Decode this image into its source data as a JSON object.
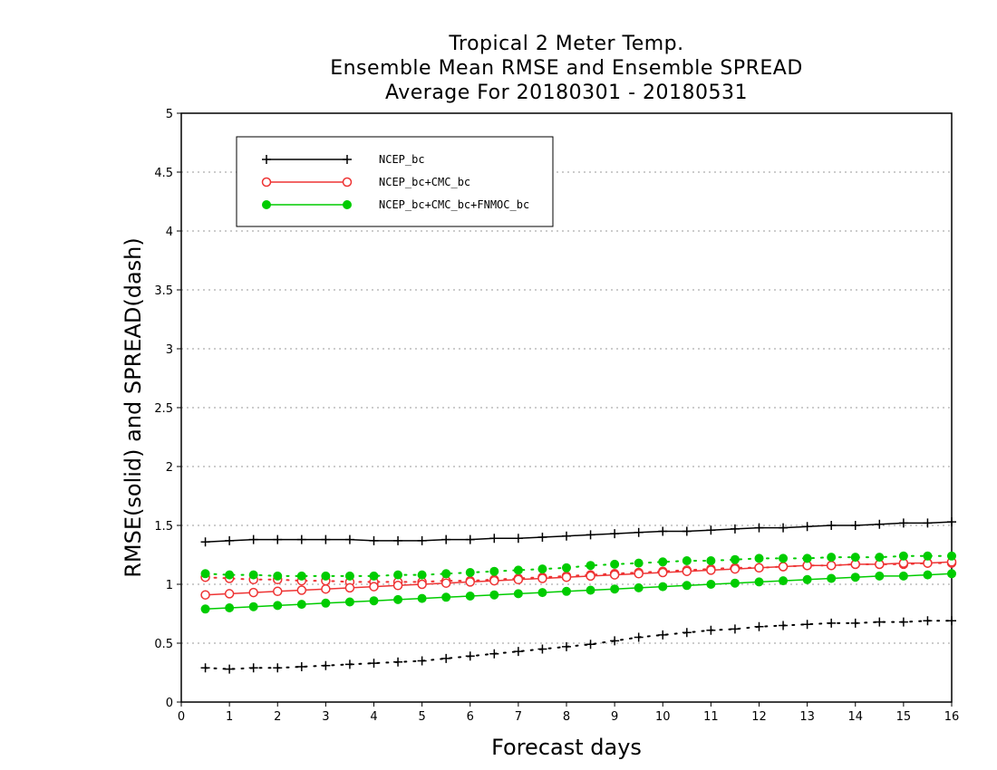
{
  "chart_data": {
    "type": "line",
    "title_lines": [
      "Tropical 2 Meter Temp.",
      "Ensemble Mean RMSE and Ensemble SPREAD",
      "Average For 20180301 - 20180531"
    ],
    "xlabel": "Forecast days",
    "ylabel": "RMSE(solid) and SPREAD(dash)",
    "xlim": [
      0,
      16
    ],
    "ylim": [
      0,
      5
    ],
    "x_ticks": [
      0,
      1,
      2,
      3,
      4,
      5,
      6,
      7,
      8,
      9,
      10,
      11,
      12,
      13,
      14,
      15,
      16
    ],
    "y_ticks": [
      0,
      0.5,
      1,
      1.5,
      2,
      2.5,
      3,
      3.5,
      4,
      4.5,
      5
    ],
    "x_tick_labels": [
      "0",
      "1",
      "2",
      "3",
      "4",
      "5",
      "6",
      "7",
      "8",
      "9",
      "10",
      "11",
      "12",
      "13",
      "14",
      "15",
      "16"
    ],
    "y_tick_labels": [
      "0",
      "0.5",
      "1",
      "1.5",
      "2",
      "2.5",
      "3",
      "3.5",
      "4",
      "4.5",
      "5"
    ],
    "grid": true,
    "legend_position": "top-left",
    "x": [
      0.5,
      1,
      1.5,
      2,
      2.5,
      3,
      3.5,
      4,
      4.5,
      5,
      5.5,
      6,
      6.5,
      7,
      7.5,
      8,
      8.5,
      9,
      9.5,
      10,
      10.5,
      11,
      11.5,
      12,
      12.5,
      13,
      13.5,
      14,
      14.5,
      15,
      15.5,
      16
    ],
    "series": [
      {
        "name": "NCEP_bc",
        "color": "#000000",
        "marker": "plus",
        "rmse": [
          1.36,
          1.37,
          1.38,
          1.38,
          1.38,
          1.38,
          1.38,
          1.37,
          1.37,
          1.37,
          1.38,
          1.38,
          1.39,
          1.39,
          1.4,
          1.41,
          1.42,
          1.43,
          1.44,
          1.45,
          1.45,
          1.46,
          1.47,
          1.48,
          1.48,
          1.49,
          1.5,
          1.5,
          1.51,
          1.52,
          1.52,
          1.53
        ],
        "spread": [
          0.29,
          0.28,
          0.29,
          0.29,
          0.3,
          0.31,
          0.32,
          0.33,
          0.34,
          0.35,
          0.37,
          0.39,
          0.41,
          0.43,
          0.45,
          0.47,
          0.49,
          0.52,
          0.55,
          0.57,
          0.59,
          0.61,
          0.62,
          0.64,
          0.65,
          0.66,
          0.67,
          0.67,
          0.68,
          0.68,
          0.69,
          0.69
        ]
      },
      {
        "name": "NCEP_bc+CMC_bc",
        "color": "#ee3333",
        "marker": "open-circle",
        "rmse": [
          0.91,
          0.92,
          0.93,
          0.94,
          0.95,
          0.96,
          0.97,
          0.98,
          0.99,
          1.0,
          1.01,
          1.02,
          1.03,
          1.04,
          1.05,
          1.06,
          1.07,
          1.08,
          1.09,
          1.1,
          1.11,
          1.12,
          1.13,
          1.14,
          1.15,
          1.16,
          1.16,
          1.17,
          1.17,
          1.18,
          1.18,
          1.19
        ],
        "spread": [
          1.06,
          1.05,
          1.04,
          1.04,
          1.03,
          1.03,
          1.02,
          1.02,
          1.02,
          1.02,
          1.03,
          1.03,
          1.04,
          1.05,
          1.06,
          1.07,
          1.08,
          1.09,
          1.1,
          1.11,
          1.12,
          1.13,
          1.14,
          1.14,
          1.15,
          1.16,
          1.16,
          1.17,
          1.17,
          1.17,
          1.18,
          1.18
        ]
      },
      {
        "name": "NCEP_bc+CMC_bc+FNMOC_bc",
        "color": "#00cc00",
        "marker": "filled-circle",
        "rmse": [
          0.79,
          0.8,
          0.81,
          0.82,
          0.83,
          0.84,
          0.85,
          0.86,
          0.87,
          0.88,
          0.89,
          0.9,
          0.91,
          0.92,
          0.93,
          0.94,
          0.95,
          0.96,
          0.97,
          0.98,
          0.99,
          1.0,
          1.01,
          1.02,
          1.03,
          1.04,
          1.05,
          1.06,
          1.07,
          1.07,
          1.08,
          1.09
        ],
        "spread": [
          1.09,
          1.08,
          1.08,
          1.07,
          1.07,
          1.07,
          1.07,
          1.07,
          1.08,
          1.08,
          1.09,
          1.1,
          1.11,
          1.12,
          1.13,
          1.14,
          1.16,
          1.17,
          1.18,
          1.19,
          1.2,
          1.2,
          1.21,
          1.22,
          1.22,
          1.22,
          1.23,
          1.23,
          1.23,
          1.24,
          1.24,
          1.24
        ]
      }
    ]
  }
}
